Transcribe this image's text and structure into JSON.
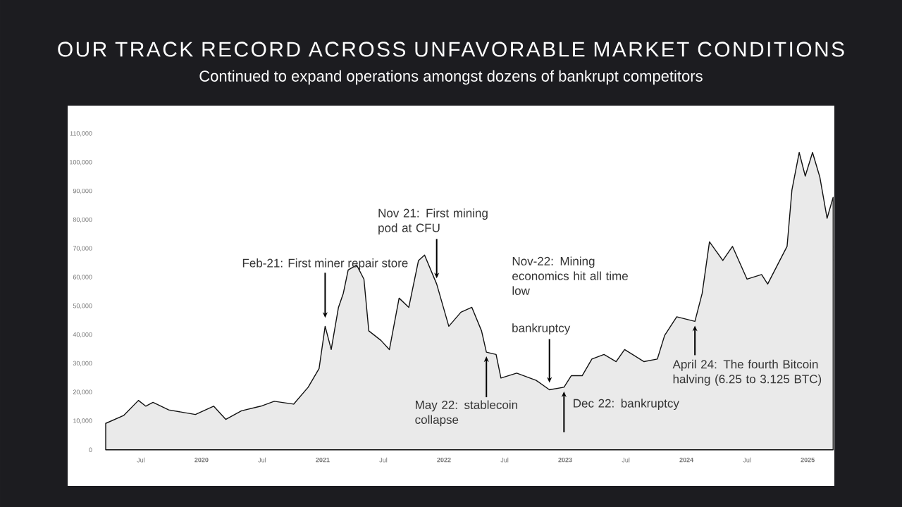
{
  "chart_data": {
    "type": "area",
    "title": "OUR TRACK RECORD ACROSS UNFAVORABLE MARKET CONDITIONS",
    "subtitle": "Continued to expand operations amongst dozens of bankrupt competitors",
    "x": [
      2019.21,
      2019.36,
      2019.48,
      2019.54,
      2019.6,
      2019.73,
      2019.95,
      2020.1,
      2020.2,
      2020.33,
      2020.49,
      2020.6,
      2020.76,
      2020.88,
      2020.97,
      2021.02,
      2021.07,
      2021.13,
      2021.17,
      2021.21,
      2021.28,
      2021.34,
      2021.38,
      2021.48,
      2021.55,
      2021.63,
      2021.71,
      2021.79,
      2021.84,
      2021.94,
      2022.04,
      2022.14,
      2022.23,
      2022.31,
      2022.35,
      2022.43,
      2022.47,
      2022.6,
      2022.76,
      2022.87,
      2022.99,
      2023.05,
      2023.14,
      2023.22,
      2023.32,
      2023.42,
      2023.49,
      2023.65,
      2023.76,
      2023.82,
      2023.92,
      2024.07,
      2024.13,
      2024.19,
      2024.3,
      2024.38,
      2024.5,
      2024.62,
      2024.67,
      2024.77,
      2024.83,
      2024.87,
      2024.93,
      2024.98,
      2025.04,
      2025.1,
      2025.16,
      2025.21
    ],
    "values": [
      9200,
      12000,
      17200,
      15200,
      16500,
      13900,
      12300,
      15200,
      10600,
      13600,
      15200,
      16900,
      15900,
      21800,
      28300,
      43000,
      34900,
      49600,
      54500,
      62600,
      64300,
      59400,
      41400,
      38100,
      34900,
      52800,
      49600,
      65900,
      67800,
      57700,
      43000,
      47900,
      49600,
      41400,
      34000,
      33200,
      25000,
      26700,
      24200,
      20900,
      21800,
      25800,
      25800,
      31600,
      33200,
      30700,
      34900,
      30700,
      31600,
      39800,
      46300,
      44700,
      54500,
      72400,
      65900,
      70800,
      59400,
      61000,
      57700,
      65900,
      70800,
      90400,
      103500,
      95300,
      103500,
      95000,
      80600,
      87900
    ],
    "color": "#111111",
    "xlim": [
      2019.21,
      2025.22
    ],
    "xticks": [
      {
        "value": 2019.5,
        "label": "Jul"
      },
      2020,
      {
        "value": 2020.5,
        "label": "Jul"
      },
      2021,
      {
        "value": 2021.5,
        "label": "Jul"
      },
      2022,
      {
        "value": 2022.5,
        "label": "Jul"
      },
      2023,
      {
        "value": 2023.5,
        "label": "Jul"
      },
      2024,
      {
        "value": 2024.5,
        "label": "Jul"
      },
      2025
    ],
    "ylim": [
      0,
      110000
    ],
    "yticks": [
      0,
      {
        "value": 10000,
        "label": "10,000"
      },
      {
        "value": 20000,
        "label": "20,000"
      },
      {
        "value": 30000,
        "label": "30,000"
      },
      {
        "value": 40000,
        "label": "40,000"
      },
      {
        "value": 50000,
        "label": "50,000"
      },
      {
        "value": 60000,
        "label": "60,000"
      },
      {
        "value": 70000,
        "label": "70,000"
      },
      {
        "value": 80000,
        "label": "80,000"
      },
      {
        "value": 90000,
        "label": "90,000"
      },
      {
        "value": 100000,
        "label": "100,000"
      },
      {
        "value": 110000,
        "label": "110,000"
      }
    ],
    "annotations": [
      {
        "text": "Feb-21: First miner repair store",
        "x": 2021.02,
        "y": 43000
      },
      {
        "text": "Nov 21: First mining pod at CFU",
        "x": 2021.94,
        "y": 57700
      },
      "Nov-22: Mining economics hit all time low",
      {
        "text": "bankruptcy",
        "x": 2022.87,
        "y": 20900
      },
      {
        "text": "May 22: stablecoin collapse",
        "x": 2022.35,
        "y": 34000
      },
      {
        "text": "Dec 22: bankruptcy",
        "x": 2022.99,
        "y": 21800
      },
      {
        "text": "April 24: The fourth Bitcoin halving (6.25 to 3.125 BTC)",
        "x": 2024.07,
        "y": 44700
      }
    ],
    "grid": false
  }
}
